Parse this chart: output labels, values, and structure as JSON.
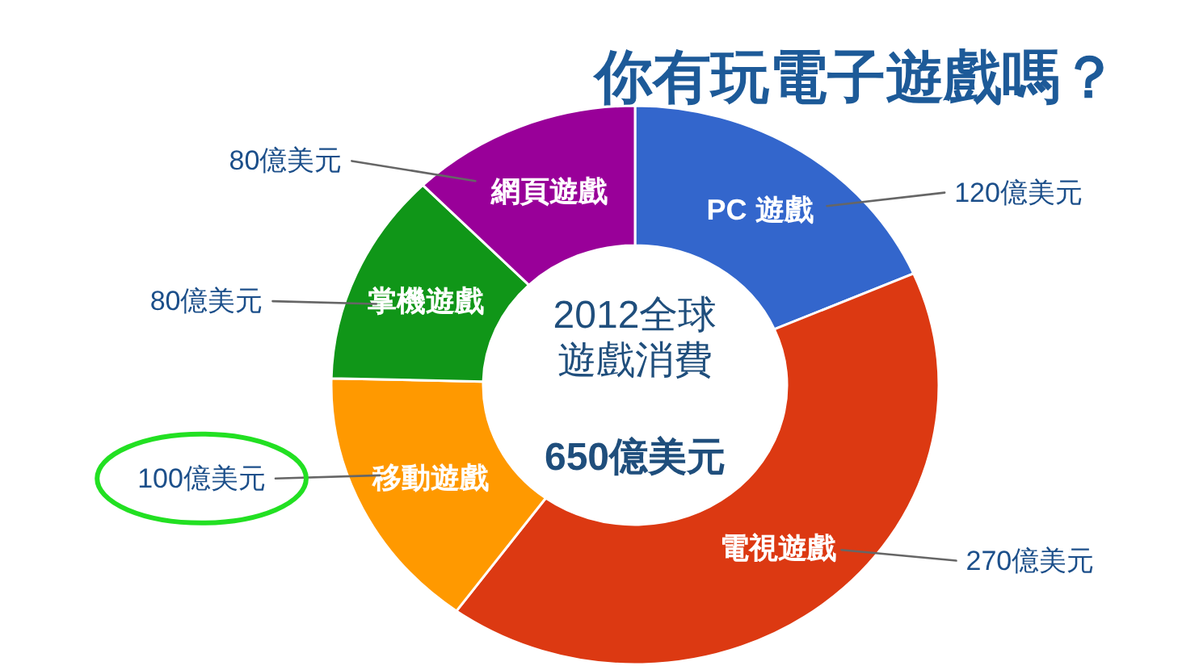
{
  "chart_data": {
    "type": "donut",
    "title": "你有玩電子遊戲嗎？",
    "categories": [
      "PC 遊戲",
      "電視遊戲",
      "移動遊戲",
      "掌機遊戲",
      "網頁遊戲"
    ],
    "values": [
      120,
      270,
      100,
      80,
      80
    ],
    "colors": [
      "#3366cc",
      "#dc3912",
      "#ff9900",
      "#109618",
      "#990099"
    ],
    "value_labels": [
      "120億美元",
      "270億美元",
      "100億美元",
      "80億美元",
      "80億美元"
    ],
    "annotations": [
      "2012全球遊戲消費",
      "650億美元"
    ]
  }
}
